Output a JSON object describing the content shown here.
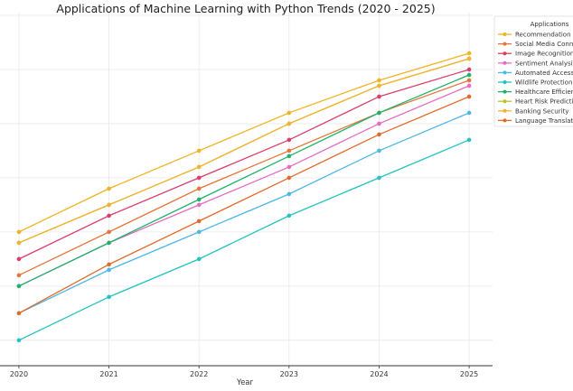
{
  "chart_data": {
    "type": "line",
    "title": "Applications of Machine Learning with Python Trends (2020 - 2025)",
    "xlabel": "Year",
    "ylabel": "",
    "x": [
      2020,
      2021,
      2022,
      2023,
      2024,
      2025
    ],
    "xticks": [
      "2020",
      "2021",
      "2022",
      "2023",
      "2024",
      "2025"
    ],
    "xlim": [
      2019.79,
      2025.26
    ],
    "ylim": [
      5.3,
      70.5
    ],
    "ygrid": [
      10,
      20,
      30,
      40,
      50,
      60,
      70
    ],
    "grid": true,
    "legend": {
      "title": "Applications",
      "placement": "top-right"
    },
    "series": [
      {
        "name": "Recommendation",
        "color": "#f0b323",
        "values": [
          30,
          38,
          45,
          52,
          58,
          63
        ]
      },
      {
        "name": "Social Media Conn",
        "color": "#e4763a",
        "values": [
          22,
          30,
          38,
          45,
          52,
          58
        ]
      },
      {
        "name": "Image Recognition",
        "color": "#dc3c6c",
        "values": [
          25,
          33,
          40,
          47,
          55,
          60
        ]
      },
      {
        "name": "Sentiment Analysi",
        "color": "#e56bc4",
        "values": [
          20,
          28,
          35,
          42,
          50,
          57
        ]
      },
      {
        "name": "Automated Access",
        "color": "#4bb8e6",
        "values": [
          15,
          23,
          30,
          37,
          45,
          52
        ]
      },
      {
        "name": "Wildlife Protection",
        "color": "#22c3c0",
        "values": [
          10,
          18,
          25,
          33,
          40,
          47
        ]
      },
      {
        "name": "Healthcare Efficien",
        "color": "#1eb36b",
        "values": [
          20,
          28,
          36,
          44,
          52,
          59
        ]
      },
      {
        "name": "Heart Risk Predicti",
        "color": "#b8c424",
        "values": [
          28,
          35,
          42,
          50,
          57,
          62
        ]
      },
      {
        "name": "Banking Security",
        "color": "#f2b233",
        "values": [
          28,
          35,
          42,
          50,
          57,
          62
        ]
      },
      {
        "name": "Language Translat",
        "color": "#e3692b",
        "values": [
          15,
          24,
          32,
          40,
          48,
          55
        ]
      }
    ]
  }
}
